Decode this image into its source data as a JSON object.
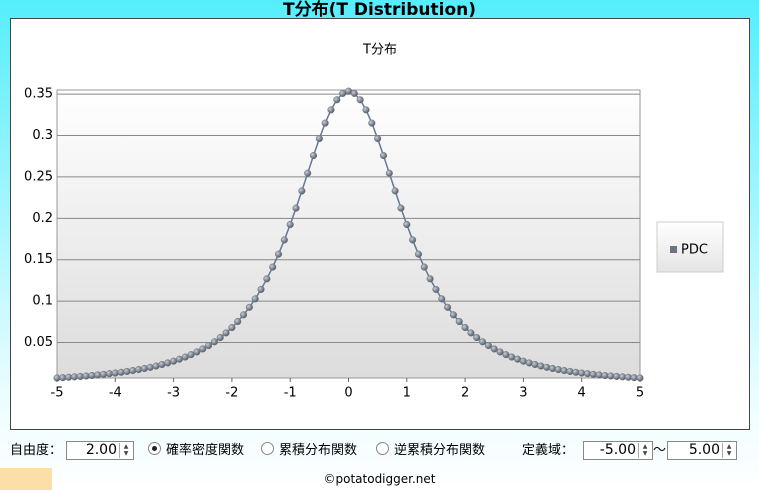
{
  "header": {
    "title": "T分布(T Distribution)"
  },
  "chart_data": {
    "type": "line",
    "title": "T分布",
    "x": [
      -5,
      -4.9,
      -4.8,
      -4.7,
      -4.6,
      -4.5,
      -4.4,
      -4.3,
      -4.2,
      -4.1,
      -4,
      -3.9,
      -3.8,
      -3.7,
      -3.6,
      -3.5,
      -3.4,
      -3.3,
      -3.2,
      -3.1,
      -3,
      -2.9,
      -2.8,
      -2.7,
      -2.6,
      -2.5,
      -2.4,
      -2.3,
      -2.2,
      -2.1,
      -2,
      -1.9,
      -1.8,
      -1.7,
      -1.6,
      -1.5,
      -1.4,
      -1.3,
      -1.2,
      -1.1,
      -1,
      -0.9,
      -0.8,
      -0.7,
      -0.6,
      -0.5,
      -0.4,
      -0.3,
      -0.2,
      -0.1,
      0,
      0.1,
      0.2,
      0.3,
      0.4,
      0.5,
      0.6,
      0.7,
      0.8,
      0.9,
      1,
      1.1,
      1.2,
      1.3,
      1.4,
      1.5,
      1.6,
      1.7,
      1.8,
      1.9,
      2,
      2.1,
      2.2,
      2.3,
      2.4,
      2.5,
      2.6,
      2.7,
      2.8,
      2.9,
      3,
      3.1,
      3.2,
      3.3,
      3.4,
      3.5,
      3.6,
      3.7,
      3.8,
      3.9,
      4,
      4.1,
      4.2,
      4.3,
      4.4,
      4.5,
      4.6,
      4.7,
      4.8,
      4.9,
      5
    ],
    "series": [
      {
        "name": "PDC",
        "color": "#5e7a99",
        "marker_color": "#6b7480",
        "values": [
          0.0071,
          0.0075,
          0.008,
          0.0085,
          0.009,
          0.0095,
          0.0101,
          0.0108,
          0.0115,
          0.0123,
          0.0131,
          0.014,
          0.015,
          0.0161,
          0.0173,
          0.0186,
          0.02,
          0.0216,
          0.0234,
          0.0253,
          0.0274,
          0.0298,
          0.0324,
          0.0353,
          0.0386,
          0.0422,
          0.0463,
          0.0508,
          0.0559,
          0.0616,
          0.068,
          0.0753,
          0.0834,
          0.0925,
          0.1027,
          0.1141,
          0.1269,
          0.1411,
          0.1567,
          0.1739,
          0.1925,
          0.2123,
          0.2331,
          0.2545,
          0.2758,
          0.2963,
          0.315,
          0.331,
          0.3432,
          0.3509,
          0.3536,
          0.3509,
          0.3432,
          0.331,
          0.315,
          0.2963,
          0.2758,
          0.2545,
          0.2331,
          0.2123,
          0.1925,
          0.1739,
          0.1567,
          0.1411,
          0.1269,
          0.1141,
          0.1027,
          0.0925,
          0.0834,
          0.0753,
          0.068,
          0.0616,
          0.0559,
          0.0508,
          0.0463,
          0.0422,
          0.0386,
          0.0353,
          0.0324,
          0.0298,
          0.0274,
          0.0253,
          0.0234,
          0.0216,
          0.02,
          0.0186,
          0.0173,
          0.0161,
          0.015,
          0.014,
          0.0131,
          0.0123,
          0.0115,
          0.0108,
          0.0101,
          0.0095,
          0.009,
          0.0085,
          0.008,
          0.0075,
          0.0071
        ]
      }
    ],
    "xlim": [
      -5,
      5
    ],
    "xticks": [
      -5,
      -4,
      -3,
      -2,
      -1,
      0,
      1,
      2,
      3,
      4,
      5
    ],
    "ylim": [
      0.0071,
      0.355
    ],
    "yticks": [
      0.05,
      0.1,
      0.15,
      0.2,
      0.25,
      0.3,
      0.35
    ],
    "grid": true,
    "legend": "right"
  },
  "controls": {
    "dof_label": "自由度：",
    "dof_value": "2.00",
    "radios": [
      "確率密度関数",
      "累積分布関数",
      "逆累積分布関数"
    ],
    "domain_label": "定義域：",
    "domain_from": "-5.00",
    "domain_sep": "～",
    "domain_to": "5.00"
  },
  "footer": "©potatodigger.net"
}
